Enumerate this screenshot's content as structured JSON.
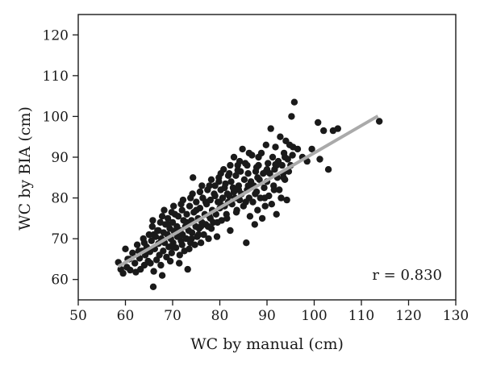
{
  "chart_data": {
    "type": "scatter",
    "xlabel": "WC by manual (cm)",
    "ylabel": "WC by BIA (cm)",
    "xlim": [
      50,
      130
    ],
    "ylim": [
      55,
      125
    ],
    "x_ticks": [
      50,
      60,
      70,
      80,
      90,
      100,
      110,
      120,
      130
    ],
    "y_ticks": [
      60,
      70,
      80,
      90,
      100,
      110,
      120
    ],
    "x_tick_labels": [
      "50",
      "60",
      "70",
      "80",
      "90",
      "100",
      "110",
      "120",
      "130"
    ],
    "y_tick_labels": [
      "60",
      "70",
      "80",
      "90",
      "100",
      "110",
      "120"
    ],
    "grid": false,
    "annotation": {
      "text": "r = 0.830",
      "position": "bottom-right"
    },
    "colors": {
      "points": "#1a1a1a",
      "fit_line": "#aaaaaa",
      "axes": "#1a1a1a"
    },
    "fit_line": {
      "x": [
        58.5,
        113.5
      ],
      "y": [
        63.2,
        100.1
      ]
    },
    "points": [
      [
        58.5,
        64.2
      ],
      [
        59,
        62.5
      ],
      [
        59.5,
        61.5
      ],
      [
        60,
        67.5
      ],
      [
        60.3,
        63
      ],
      [
        60.8,
        65
      ],
      [
        61,
        62.3
      ],
      [
        61.5,
        66.5
      ],
      [
        62,
        64
      ],
      [
        62.2,
        61.8
      ],
      [
        62.5,
        68.5
      ],
      [
        63,
        65.2
      ],
      [
        63.2,
        62.5
      ],
      [
        63.5,
        67
      ],
      [
        63.8,
        70
      ],
      [
        64,
        63.5
      ],
      [
        64.2,
        66
      ],
      [
        64.5,
        68
      ],
      [
        64.8,
        64.5
      ],
      [
        65,
        71
      ],
      [
        65.2,
        66.8
      ],
      [
        65.5,
        69.5
      ],
      [
        65.7,
        73
      ],
      [
        65.9,
        58.2
      ],
      [
        66,
        62
      ],
      [
        66.2,
        67.5
      ],
      [
        66.4,
        70.5
      ],
      [
        66.6,
        64.8
      ],
      [
        66.8,
        72
      ],
      [
        67,
        68.8
      ],
      [
        67.2,
        66
      ],
      [
        67.4,
        74
      ],
      [
        67.6,
        70
      ],
      [
        67.8,
        61
      ],
      [
        68,
        67
      ],
      [
        68.1,
        71.5
      ],
      [
        68.3,
        69
      ],
      [
        68.5,
        73.5
      ],
      [
        68.7,
        65.5
      ],
      [
        68.9,
        71
      ],
      [
        69,
        75
      ],
      [
        69.2,
        68
      ],
      [
        69.4,
        72.5
      ],
      [
        69.6,
        70
      ],
      [
        69.8,
        66.5
      ],
      [
        70,
        74
      ],
      [
        70.1,
        69
      ],
      [
        70.3,
        71.8
      ],
      [
        70.5,
        76
      ],
      [
        70.7,
        67.8
      ],
      [
        70.9,
        73
      ],
      [
        71,
        70.5
      ],
      [
        71.2,
        75.5
      ],
      [
        71.4,
        64
      ],
      [
        71.6,
        72
      ],
      [
        71.8,
        69.5
      ],
      [
        72,
        77
      ],
      [
        72.1,
        71
      ],
      [
        72.3,
        74.5
      ],
      [
        72.5,
        67
      ],
      [
        72.7,
        73
      ],
      [
        72.9,
        70
      ],
      [
        73,
        76
      ],
      [
        73.2,
        62.5
      ],
      [
        73.4,
        72
      ],
      [
        73.6,
        78
      ],
      [
        73.8,
        69
      ],
      [
        74,
        74.5
      ],
      [
        74.1,
        71.5
      ],
      [
        74.3,
        85
      ],
      [
        74.5,
        76.5
      ],
      [
        74.7,
        68.5
      ],
      [
        74.9,
        73
      ],
      [
        75,
        79
      ],
      [
        75.2,
        70.5
      ],
      [
        75.4,
        75
      ],
      [
        75.6,
        72.5
      ],
      [
        75.8,
        77.5
      ],
      [
        76,
        69
      ],
      [
        76.2,
        74
      ],
      [
        76.4,
        80
      ],
      [
        76.6,
        71
      ],
      [
        76.8,
        76
      ],
      [
        77,
        73.5
      ],
      [
        77.2,
        78.5
      ],
      [
        77.4,
        82
      ],
      [
        77.6,
        70
      ],
      [
        77.8,
        75.5
      ],
      [
        78,
        79.5
      ],
      [
        78.2,
        72.5
      ],
      [
        78.4,
        77
      ],
      [
        78.6,
        74
      ],
      [
        78.8,
        81
      ],
      [
        79,
        83
      ],
      [
        79.2,
        76
      ],
      [
        79.4,
        70.5
      ],
      [
        79.6,
        79
      ],
      [
        79.8,
        85
      ],
      [
        80,
        77.5
      ],
      [
        80.2,
        82
      ],
      [
        80.4,
        74.5
      ],
      [
        80.6,
        80
      ],
      [
        80.8,
        87
      ],
      [
        81,
        78
      ],
      [
        81.2,
        83.5
      ],
      [
        81.4,
        76
      ],
      [
        81.6,
        81
      ],
      [
        81.8,
        79
      ],
      [
        82,
        86
      ],
      [
        82.2,
        72
      ],
      [
        82.4,
        84
      ],
      [
        82.6,
        78.5
      ],
      [
        82.8,
        82.5
      ],
      [
        83,
        90
      ],
      [
        83.2,
        80
      ],
      [
        83.4,
        85.5
      ],
      [
        83.6,
        77
      ],
      [
        83.8,
        88
      ],
      [
        84,
        83
      ],
      [
        84.2,
        79.5
      ],
      [
        84.4,
        86.5
      ],
      [
        84.6,
        81
      ],
      [
        84.8,
        92
      ],
      [
        85,
        78
      ],
      [
        85.2,
        84.5
      ],
      [
        85.4,
        88.5
      ],
      [
        85.6,
        69
      ],
      [
        85.8,
        82
      ],
      [
        86,
        86
      ],
      [
        86.2,
        80
      ],
      [
        86.4,
        75.5
      ],
      [
        86.6,
        84
      ],
      [
        86.8,
        90.5
      ],
      [
        87,
        79
      ],
      [
        87.2,
        83
      ],
      [
        87.4,
        73.5
      ],
      [
        87.6,
        86.5
      ],
      [
        87.8,
        81.5
      ],
      [
        88,
        77
      ],
      [
        88.2,
        88
      ],
      [
        88.4,
        84.5
      ],
      [
        88.6,
        80
      ],
      [
        88.8,
        91
      ],
      [
        89,
        75
      ],
      [
        89.2,
        86
      ],
      [
        89.4,
        82.5
      ],
      [
        89.6,
        78
      ],
      [
        89.8,
        93
      ],
      [
        90,
        84
      ],
      [
        90.2,
        88.5
      ],
      [
        90.4,
        80.5
      ],
      [
        90.6,
        86
      ],
      [
        90.8,
        97
      ],
      [
        91,
        78.5
      ],
      [
        91.2,
        90
      ],
      [
        91.4,
        83
      ],
      [
        91.6,
        87
      ],
      [
        91.8,
        92.5
      ],
      [
        92,
        76
      ],
      [
        92.2,
        85
      ],
      [
        92.4,
        89
      ],
      [
        92.6,
        82
      ],
      [
        92.8,
        95
      ],
      [
        93,
        80
      ],
      [
        93.2,
        88
      ],
      [
        93.4,
        86
      ],
      [
        93.6,
        91
      ],
      [
        93.8,
        84.5
      ],
      [
        94,
        94
      ],
      [
        94.2,
        79.5
      ],
      [
        94.4,
        89.5
      ],
      [
        94.6,
        86.5
      ],
      [
        94.8,
        93
      ],
      [
        95,
        88
      ],
      [
        95.2,
        100
      ],
      [
        95.4,
        90.5
      ],
      [
        95.8,
        103.5
      ],
      [
        96.5,
        92
      ],
      [
        97.5,
        90
      ],
      [
        98.5,
        89
      ],
      [
        99.5,
        92
      ],
      [
        100.8,
        98.5
      ],
      [
        101.2,
        89.5
      ],
      [
        102,
        96.5
      ],
      [
        103,
        87
      ],
      [
        104,
        96.5
      ],
      [
        105,
        97
      ],
      [
        113.8,
        98.8
      ],
      [
        67,
        72
      ],
      [
        69,
        73.5
      ],
      [
        71,
        72.5
      ],
      [
        73,
        74
      ],
      [
        75,
        77
      ],
      [
        77,
        79
      ],
      [
        79,
        80.5
      ],
      [
        81,
        82.5
      ],
      [
        83,
        81.5
      ],
      [
        64,
        69
      ],
      [
        66,
        71
      ],
      [
        68,
        69.5
      ],
      [
        70,
        68
      ],
      [
        72,
        68.5
      ],
      [
        74,
        70
      ],
      [
        76,
        73
      ],
      [
        78,
        75
      ],
      [
        80,
        79
      ],
      [
        82,
        80.5
      ],
      [
        84,
        82
      ],
      [
        86,
        83
      ],
      [
        88,
        85
      ],
      [
        90,
        87
      ],
      [
        92,
        88
      ],
      [
        60.5,
        65
      ],
      [
        62.8,
        67
      ],
      [
        65.3,
        64
      ],
      [
        67.5,
        63.5
      ],
      [
        69.5,
        64.5
      ],
      [
        71.5,
        66
      ],
      [
        73.5,
        67.5
      ],
      [
        75.5,
        71
      ],
      [
        77.5,
        73
      ],
      [
        79.5,
        74
      ],
      [
        81.5,
        75
      ],
      [
        83.5,
        76.5
      ],
      [
        85.5,
        79
      ],
      [
        87.5,
        81
      ],
      [
        89.5,
        80
      ],
      [
        91.5,
        82
      ],
      [
        93.5,
        85
      ],
      [
        68.2,
        77
      ],
      [
        70.2,
        78
      ],
      [
        72.2,
        79.5
      ],
      [
        74.2,
        81
      ],
      [
        76.2,
        83
      ],
      [
        78.2,
        84.5
      ],
      [
        80.2,
        86
      ],
      [
        82.2,
        88
      ],
      [
        84.2,
        89
      ],
      [
        86.2,
        91
      ],
      [
        88.2,
        90
      ],
      [
        65.8,
        74.5
      ],
      [
        67.8,
        75.5
      ],
      [
        69.8,
        76.5
      ],
      [
        71.8,
        78.5
      ],
      [
        73.8,
        80
      ],
      [
        75.8,
        81.5
      ],
      [
        77.8,
        83
      ],
      [
        79.8,
        84
      ],
      [
        81.8,
        85.5
      ],
      [
        83.8,
        86.8
      ],
      [
        85.8,
        88
      ],
      [
        87.8,
        87.5
      ],
      [
        89.8,
        86.5
      ],
      [
        91.8,
        88.2
      ],
      [
        93.8,
        90
      ],
      [
        95.5,
        92.5
      ]
    ]
  }
}
